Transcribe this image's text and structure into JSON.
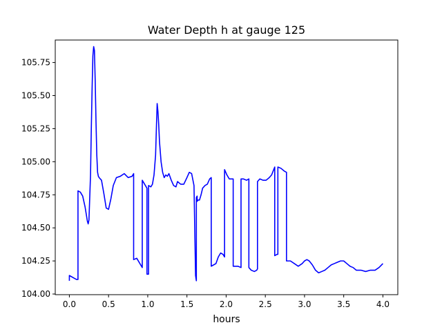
{
  "chart_data": {
    "type": "line",
    "title": "Water Depth h at gauge 125",
    "xlabel": "hours",
    "ylabel": "",
    "xlim": [
      -0.18,
      4.19
    ],
    "ylim": [
      103.995,
      105.92
    ],
    "xticks": [
      0.0,
      0.5,
      1.0,
      1.5,
      2.0,
      2.5,
      3.0,
      3.5,
      4.0
    ],
    "xtick_labels": [
      "0.0",
      "0.5",
      "1.0",
      "1.5",
      "2.0",
      "2.5",
      "3.0",
      "3.5",
      "4.0"
    ],
    "yticks": [
      104.0,
      104.25,
      104.5,
      104.75,
      105.0,
      105.25,
      105.5,
      105.75
    ],
    "ytick_labels": [
      "104.00",
      "104.25",
      "104.50",
      "104.75",
      "105.00",
      "105.25",
      "105.50",
      "105.75"
    ],
    "grid": false,
    "series": [
      {
        "color": "#0000ff",
        "x": [
          0.0,
          0.0,
          0.03,
          0.06,
          0.09,
          0.11,
          0.11,
          0.14,
          0.17,
          0.2,
          0.23,
          0.24,
          0.25,
          0.27,
          0.28,
          0.29,
          0.3,
          0.31,
          0.32,
          0.33,
          0.34,
          0.35,
          0.36,
          0.37,
          0.38,
          0.41,
          0.44,
          0.47,
          0.5,
          0.53,
          0.56,
          0.6,
          0.65,
          0.7,
          0.75,
          0.8,
          0.82,
          0.82,
          0.86,
          0.9,
          0.93,
          0.93,
          0.96,
          0.99,
          0.99,
          1.01,
          1.01,
          1.01,
          1.04,
          1.06,
          1.08,
          1.1,
          1.11,
          1.12,
          1.13,
          1.14,
          1.15,
          1.17,
          1.19,
          1.21,
          1.23,
          1.25,
          1.27,
          1.3,
          1.33,
          1.36,
          1.38,
          1.42,
          1.46,
          1.5,
          1.53,
          1.56,
          1.59,
          1.61,
          1.62,
          1.62,
          1.63,
          1.63,
          1.64,
          1.66,
          1.68,
          1.7,
          1.73,
          1.76,
          1.79,
          1.81,
          1.81,
          1.84,
          1.87,
          1.9,
          1.93,
          1.96,
          1.98,
          1.98,
          2.01,
          2.04,
          2.07,
          2.09,
          2.09,
          2.12,
          2.15,
          2.19,
          2.19,
          2.22,
          2.26,
          2.29,
          2.29,
          2.32,
          2.36,
          2.39,
          2.4,
          2.4,
          2.43,
          2.47,
          2.51,
          2.55,
          2.58,
          2.6,
          2.62,
          2.62,
          2.65,
          2.66,
          2.66,
          2.7,
          2.74,
          2.77,
          2.77,
          2.82,
          2.87,
          2.92,
          2.97,
          3.0,
          3.03,
          3.06,
          3.1,
          3.14,
          3.18,
          3.22,
          3.26,
          3.3,
          3.34,
          3.38,
          3.42,
          3.46,
          3.5,
          3.54,
          3.58,
          3.62,
          3.66,
          3.72,
          3.78,
          3.84,
          3.9,
          3.95,
          4.0
        ],
        "y": [
          104.1,
          104.14,
          104.13,
          104.12,
          104.11,
          104.11,
          104.78,
          104.77,
          104.74,
          104.66,
          104.55,
          104.53,
          104.56,
          104.9,
          105.25,
          105.55,
          105.8,
          105.87,
          105.84,
          105.6,
          105.3,
          105.05,
          104.92,
          104.89,
          104.88,
          104.86,
          104.76,
          104.65,
          104.64,
          104.72,
          104.82,
          104.88,
          104.89,
          104.91,
          104.88,
          104.89,
          104.91,
          104.26,
          104.27,
          104.23,
          104.2,
          104.86,
          104.83,
          104.8,
          104.15,
          104.15,
          104.82,
          104.82,
          104.81,
          104.83,
          104.9,
          105.05,
          105.25,
          105.44,
          105.38,
          105.28,
          105.15,
          105.0,
          104.92,
          104.88,
          104.9,
          104.89,
          104.91,
          104.86,
          104.82,
          104.81,
          104.85,
          104.83,
          104.83,
          104.88,
          104.92,
          104.91,
          104.82,
          104.14,
          104.1,
          104.73,
          104.74,
          104.7,
          104.71,
          104.71,
          104.75,
          104.8,
          104.82,
          104.83,
          104.87,
          104.88,
          104.21,
          104.22,
          104.23,
          104.28,
          104.31,
          104.3,
          104.28,
          104.94,
          104.9,
          104.87,
          104.87,
          104.87,
          104.21,
          104.21,
          104.21,
          104.2,
          104.87,
          104.87,
          104.86,
          104.87,
          104.2,
          104.18,
          104.17,
          104.18,
          104.19,
          104.85,
          104.87,
          104.86,
          104.86,
          104.88,
          104.9,
          104.93,
          104.96,
          104.29,
          104.3,
          104.3,
          104.96,
          104.95,
          104.93,
          104.92,
          104.25,
          104.25,
          104.23,
          104.21,
          104.23,
          104.25,
          104.26,
          104.25,
          104.22,
          104.18,
          104.16,
          104.17,
          104.18,
          104.2,
          104.22,
          104.23,
          104.24,
          104.25,
          104.25,
          104.23,
          104.21,
          104.2,
          104.18,
          104.18,
          104.17,
          104.18,
          104.18,
          104.2,
          104.23
        ]
      }
    ]
  }
}
